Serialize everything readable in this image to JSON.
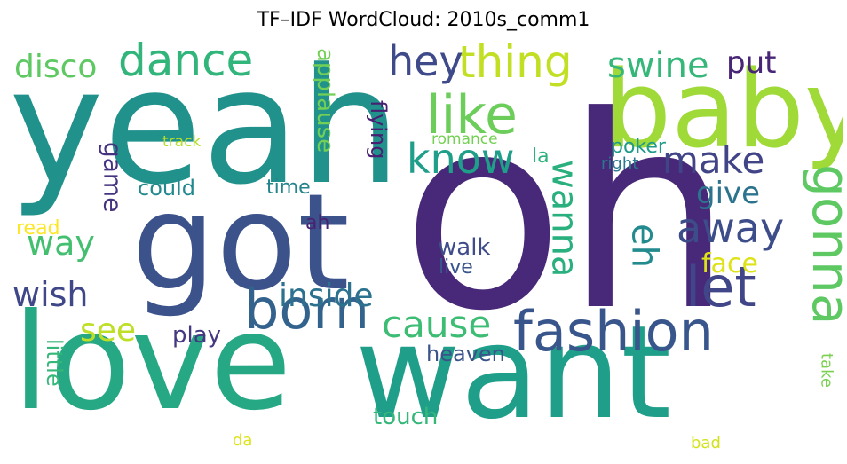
{
  "chart_data": {
    "type": "wordcloud",
    "title": "TF–IDF WordCloud: 2010s_comm1",
    "words": [
      {
        "text": "oh",
        "color": "#482878"
      },
      {
        "text": "yeah",
        "color": "#21918c"
      },
      {
        "text": "got",
        "color": "#3b528b"
      },
      {
        "text": "love",
        "color": "#26a884"
      },
      {
        "text": "want",
        "color": "#1f9e89"
      },
      {
        "text": "baby",
        "color": "#a0da39"
      },
      {
        "text": "fashion",
        "color": "#39568c"
      },
      {
        "text": "born",
        "color": "#33638d"
      },
      {
        "text": "let",
        "color": "#404688"
      },
      {
        "text": "gonna",
        "color": "#5ec962"
      },
      {
        "text": "like",
        "color": "#6ccd5a"
      },
      {
        "text": "dance",
        "color": "#31b57b"
      },
      {
        "text": "thing",
        "color": "#c2df23"
      },
      {
        "text": "hey",
        "color": "#3e4a89"
      },
      {
        "text": "know",
        "color": "#1f9e89"
      },
      {
        "text": "wanna",
        "color": "#2ab07f"
      },
      {
        "text": "eh",
        "color": "#238a8d"
      },
      {
        "text": "away",
        "color": "#3d4d8a"
      },
      {
        "text": "make",
        "color": "#414487"
      },
      {
        "text": "cause",
        "color": "#3dbc74"
      },
      {
        "text": "swine",
        "color": "#35b779"
      },
      {
        "text": "disco",
        "color": "#5ec962"
      },
      {
        "text": "way",
        "color": "#44bf70"
      },
      {
        "text": "wish",
        "color": "#3f4788"
      },
      {
        "text": "inside",
        "color": "#2c728e"
      },
      {
        "text": "see",
        "color": "#bddf26"
      },
      {
        "text": "give",
        "color": "#2c738e"
      },
      {
        "text": "put",
        "color": "#482576"
      },
      {
        "text": "game",
        "color": "#46337f"
      },
      {
        "text": "applause",
        "color": "#73d056"
      },
      {
        "text": "flying",
        "color": "#481f71"
      },
      {
        "text": "face",
        "color": "#dde318"
      },
      {
        "text": "walk",
        "color": "#3e4c8a"
      },
      {
        "text": "play",
        "color": "#453882"
      },
      {
        "text": "heaven",
        "color": "#3b528b"
      },
      {
        "text": "touch",
        "color": "#35b779"
      },
      {
        "text": "little",
        "color": "#35b779"
      },
      {
        "text": "could",
        "color": "#23898e"
      },
      {
        "text": "time",
        "color": "#25858e"
      },
      {
        "text": "poker",
        "color": "#1e9b8a"
      },
      {
        "text": "la",
        "color": "#2db27d"
      },
      {
        "text": "live",
        "color": "#39558c"
      },
      {
        "text": "ah",
        "color": "#482173"
      },
      {
        "text": "romance",
        "color": "#74d055"
      },
      {
        "text": "right",
        "color": "#2a788e"
      },
      {
        "text": "track",
        "color": "#b5de2b"
      },
      {
        "text": "read",
        "color": "#fde725"
      },
      {
        "text": "take",
        "color": "#7ad151"
      },
      {
        "text": "da",
        "color": "#dfe318"
      },
      {
        "text": "bad",
        "color": "#d2e21b"
      }
    ]
  }
}
